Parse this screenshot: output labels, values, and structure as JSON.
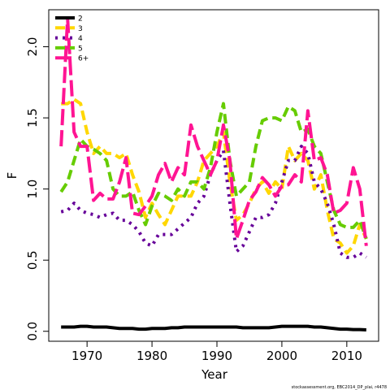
{
  "chart_data": {
    "type": "line",
    "xlabel": "Year",
    "ylabel": "F",
    "footnote": "stockassessment.org, EBC2014_DP_plai, r4478",
    "x": [
      1966,
      1967,
      1968,
      1969,
      1970,
      1971,
      1972,
      1973,
      1974,
      1975,
      1976,
      1977,
      1978,
      1979,
      1980,
      1981,
      1982,
      1983,
      1984,
      1985,
      1986,
      1987,
      1988,
      1989,
      1990,
      1991,
      1992,
      1993,
      1994,
      1995,
      1996,
      1997,
      1998,
      1999,
      2000,
      2001,
      2002,
      2003,
      2004,
      2005,
      2006,
      2007,
      2008,
      2009,
      2010,
      2011,
      2012,
      2013
    ],
    "xlim": [
      1964.1,
      2014.9
    ],
    "xticks": [
      1970,
      1980,
      1990,
      2000,
      2010
    ],
    "ylim": [
      -0.07,
      2.26
    ],
    "yticks": [
      {
        "value": 0,
        "label": "0.0"
      },
      0.5,
      {
        "value": 1,
        "label": "1.0"
      },
      1.5,
      {
        "value": 2,
        "label": "2.0"
      }
    ],
    "legend": "top-left",
    "series": [
      {
        "name": "2",
        "color": "#000000",
        "line_style": "solid",
        "values": [
          0.03,
          0.03,
          0.03,
          0.035,
          0.035,
          0.03,
          0.03,
          0.03,
          0.025,
          0.02,
          0.02,
          0.02,
          0.015,
          0.015,
          0.02,
          0.02,
          0.02,
          0.025,
          0.025,
          0.03,
          0.03,
          0.03,
          0.03,
          0.03,
          0.03,
          0.03,
          0.03,
          0.03,
          0.025,
          0.025,
          0.025,
          0.025,
          0.025,
          0.03,
          0.035,
          0.035,
          0.035,
          0.035,
          0.035,
          0.03,
          0.03,
          0.025,
          0.02,
          0.015,
          0.015,
          0.012,
          0.012,
          0.01
        ]
      },
      {
        "name": "3",
        "color": "#ffd700",
        "line_style": "dashed",
        "values": [
          1.6,
          1.6,
          1.63,
          1.6,
          1.4,
          1.25,
          1.3,
          1.25,
          1.25,
          1.22,
          1.25,
          1.1,
          0.98,
          0.8,
          0.9,
          0.82,
          0.75,
          0.85,
          0.95,
          0.95,
          0.95,
          1.05,
          1.2,
          1.25,
          1.3,
          1.4,
          1.05,
          0.78,
          0.82,
          0.9,
          1.0,
          1.05,
          0.97,
          1.05,
          1.0,
          1.3,
          1.2,
          1.25,
          1.2,
          1.0,
          1.1,
          0.85,
          0.65,
          0.62,
          0.55,
          0.6,
          0.75,
          0.65
        ]
      },
      {
        "name": "4",
        "color": "#660099",
        "line_style": "dotted",
        "values": [
          0.84,
          0.85,
          0.9,
          0.85,
          0.83,
          0.82,
          0.8,
          0.82,
          0.83,
          0.78,
          0.78,
          0.75,
          0.7,
          0.62,
          0.6,
          0.68,
          0.68,
          0.68,
          0.72,
          0.76,
          0.8,
          0.9,
          0.95,
          1.1,
          1.2,
          1.27,
          0.9,
          0.56,
          0.6,
          0.7,
          0.8,
          0.8,
          0.82,
          0.9,
          1.05,
          1.2,
          1.2,
          1.3,
          1.25,
          1.05,
          1.0,
          0.9,
          0.75,
          0.55,
          0.52,
          0.52,
          0.55,
          0.52
        ]
      },
      {
        "name": "5",
        "color": "#66cc00",
        "line_style": "dashed",
        "values": [
          0.98,
          1.05,
          1.2,
          1.35,
          1.3,
          1.28,
          1.25,
          1.2,
          1.0,
          0.95,
          0.95,
          0.98,
          0.85,
          0.75,
          0.88,
          0.97,
          0.95,
          0.92,
          1.0,
          0.95,
          1.05,
          1.05,
          1.0,
          1.15,
          1.4,
          1.6,
          1.2,
          0.95,
          1.0,
          1.05,
          1.3,
          1.48,
          1.5,
          1.5,
          1.48,
          1.58,
          1.55,
          1.4,
          1.42,
          1.3,
          1.25,
          1.05,
          0.85,
          0.75,
          0.73,
          0.73,
          0.78,
          0.65
        ]
      },
      {
        "name": "6+",
        "color": "#ff1493",
        "line_style": "longdash",
        "values": [
          1.3,
          2.2,
          1.4,
          1.3,
          1.3,
          0.92,
          0.97,
          0.93,
          0.93,
          1.05,
          1.22,
          0.83,
          0.82,
          0.88,
          0.95,
          1.1,
          1.18,
          1.05,
          1.15,
          1.1,
          1.45,
          1.3,
          1.2,
          1.1,
          1.2,
          1.45,
          1.2,
          0.65,
          0.78,
          0.92,
          0.98,
          1.08,
          1.03,
          0.95,
          1.02,
          1.03,
          1.1,
          1.05,
          1.55,
          1.2,
          1.22,
          1.1,
          0.83,
          0.85,
          0.9,
          1.15,
          1.0,
          0.6
        ]
      }
    ]
  }
}
